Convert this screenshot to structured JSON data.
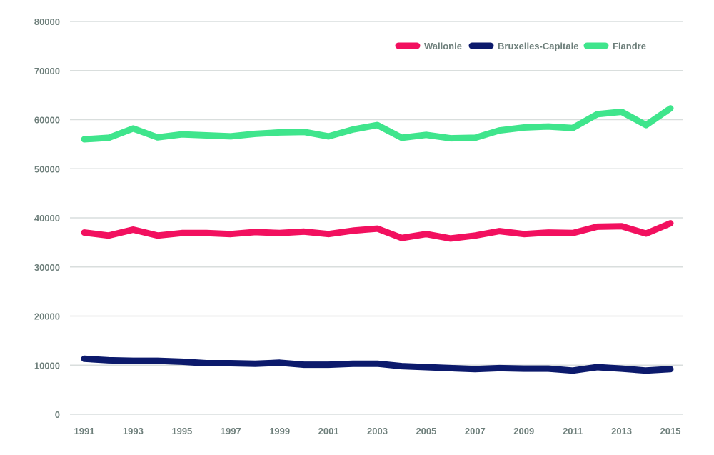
{
  "chart_data": {
    "type": "line",
    "title": "",
    "xlabel": "",
    "ylabel": "",
    "x": [
      1991,
      1992,
      1993,
      1994,
      1995,
      1996,
      1997,
      1998,
      1999,
      2000,
      2001,
      2002,
      2003,
      2004,
      2005,
      2006,
      2007,
      2008,
      2009,
      2010,
      2011,
      2012,
      2013,
      2014,
      2015
    ],
    "xtick_labels": [
      "1991",
      "1993",
      "1995",
      "1997",
      "1999",
      "2001",
      "2003",
      "2005",
      "2007",
      "2009",
      "2011",
      "2013",
      "2015"
    ],
    "ylim": [
      0,
      80000
    ],
    "yticks": [
      0,
      10000,
      20000,
      30000,
      40000,
      50000,
      60000,
      70000,
      80000
    ],
    "ytick_labels": [
      "0",
      "10000",
      "20000",
      "30000",
      "40000",
      "50000",
      "60000",
      "70000",
      "80000"
    ],
    "grid": "horizontal",
    "legend_position": "top-right",
    "series": [
      {
        "name": "Wallonie",
        "color": "#f2105f",
        "values": [
          37000,
          36400,
          37600,
          36400,
          36900,
          36900,
          36700,
          37100,
          36900,
          37200,
          36700,
          37400,
          37800,
          35900,
          36700,
          35800,
          36400,
          37300,
          36700,
          37000,
          36900,
          38200,
          38300,
          36800,
          38900
        ]
      },
      {
        "name": "Bruxelles-Capitale",
        "color": "#0c1a6c",
        "values": [
          11300,
          11000,
          10900,
          10900,
          10700,
          10400,
          10400,
          10300,
          10500,
          10100,
          10100,
          10300,
          10300,
          9800,
          9600,
          9400,
          9200,
          9400,
          9300,
          9300,
          8900,
          9600,
          9300,
          8900,
          9200
        ]
      },
      {
        "name": "Flandre",
        "color": "#3fe58c",
        "values": [
          56000,
          56300,
          58200,
          56400,
          57000,
          56800,
          56600,
          57100,
          57400,
          57500,
          56600,
          58000,
          58900,
          56300,
          56900,
          56200,
          56300,
          57800,
          58400,
          58600,
          58300,
          61100,
          61600,
          58900,
          62300
        ]
      }
    ]
  }
}
